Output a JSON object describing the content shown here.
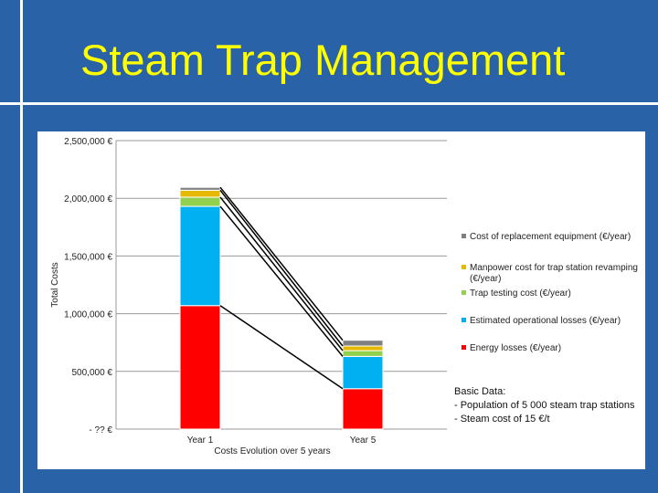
{
  "slide": {
    "title": "Steam Trap Management"
  },
  "note": {
    "heading": "Basic Data:",
    "lines": [
      "- Population of 5 000 steam trap stations",
      "- Steam cost of 15 €/t"
    ]
  },
  "colors": {
    "background": "#2a62a8",
    "title": "#ffff00",
    "energy": "#ff0000",
    "operational": "#00b0f0",
    "testing": "#92d050",
    "manpower": "#e6b800",
    "replacement": "#808080"
  },
  "chart_data": {
    "type": "bar",
    "stacked": true,
    "categories": [
      "Year 1",
      "Year 5"
    ],
    "ylabel": "Total Costs",
    "xlabel": "Costs Evolution over 5 years",
    "ylim": [
      0,
      2500000
    ],
    "y_ticks": [
      {
        "value": 2500000,
        "label": "2,500,000 €"
      },
      {
        "value": 2000000,
        "label": "2,000,000 €"
      },
      {
        "value": 1500000,
        "label": "1,500,000 €"
      },
      {
        "value": 1000000,
        "label": "1,000,000 €"
      },
      {
        "value": 500000,
        "label": "500,000 €"
      },
      {
        "value": 0,
        "label": "- ?? €"
      }
    ],
    "gridlines": true,
    "legend_position": "right",
    "series": [
      {
        "key": "energy",
        "name": "Energy losses (€/year)",
        "color": "#ff0000",
        "values": [
          1070000,
          350000
        ]
      },
      {
        "key": "operational",
        "name": "Estimated operational losses (€/year)",
        "color": "#00b0f0",
        "values": [
          860000,
          280000
        ]
      },
      {
        "key": "testing",
        "name": "Trap testing cost (€/year)",
        "color": "#92d050",
        "values": [
          80000,
          50000
        ]
      },
      {
        "key": "manpower",
        "name": "Manpower cost for trap station revamping (€/year)",
        "color": "#e6b800",
        "values": [
          60000,
          40000
        ]
      },
      {
        "key": "replacement",
        "name": "Cost of replacement equipment (€/year)",
        "color": "#808080",
        "values": [
          25000,
          50000
        ]
      }
    ]
  }
}
